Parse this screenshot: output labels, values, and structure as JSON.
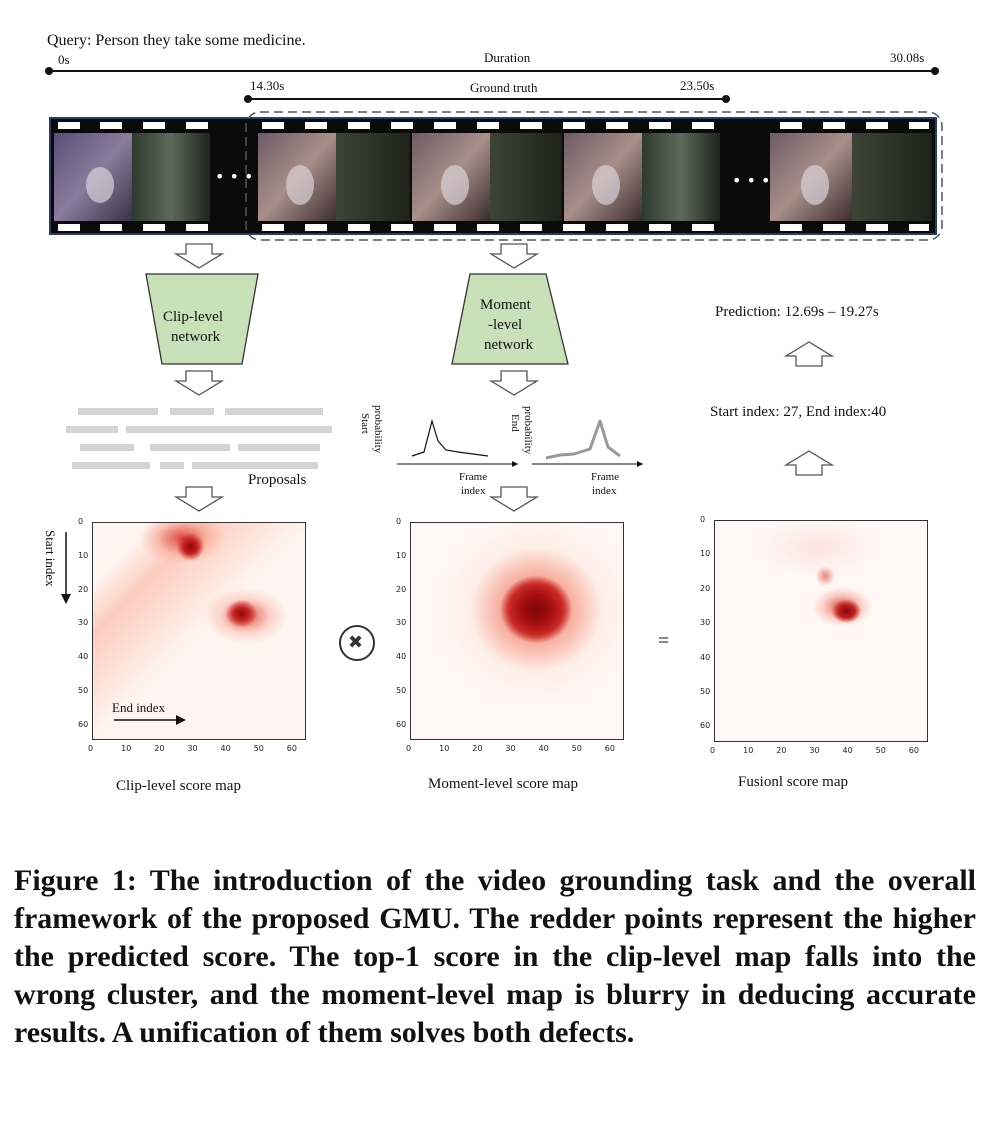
{
  "query": "Query: Person they take some medicine.",
  "timeline": {
    "start_label": "0s",
    "duration_label": "Duration",
    "end_label": "30.08s",
    "gt_start_label": "14.30s",
    "gt_label": "Ground truth",
    "gt_end_label": "23.50s"
  },
  "ellipsis": "• • •",
  "clip_network": {
    "line1": "Clip-level",
    "line2": "network"
  },
  "moment_network": {
    "line1": "Moment",
    "line2": "-level",
    "line3": "network"
  },
  "prediction": "Prediction: 12.69s – 19.27s",
  "index_result": "Start index:  27, End index:40",
  "proposals_label": "Proposals",
  "plots": {
    "start_ylabel_1": "Start",
    "start_ylabel_2": "probability",
    "end_ylabel_1": "End",
    "end_ylabel_2": "probability",
    "xlabel_1": "Frame",
    "xlabel_2": "index"
  },
  "maps": {
    "clip_title": "Clip-level score map",
    "moment_title": "Moment-level score map",
    "fusion_title": "Fusionl score map",
    "start_index_label": "Start index",
    "end_index_label": "End index",
    "ticks": [
      "0",
      "10",
      "20",
      "30",
      "40",
      "50",
      "60"
    ],
    "multiply_symbol": "✖",
    "equals_symbol": "="
  },
  "caption": "Figure 1: The introduction of the video grounding task and the overall framework of the proposed GMU. The redder points represent the higher the predicted score. The top-1 score in the clip-level map falls into the wrong cluster, and the moment-level map is blurry in deducing accurate results. A unification of them solves both defects."
}
